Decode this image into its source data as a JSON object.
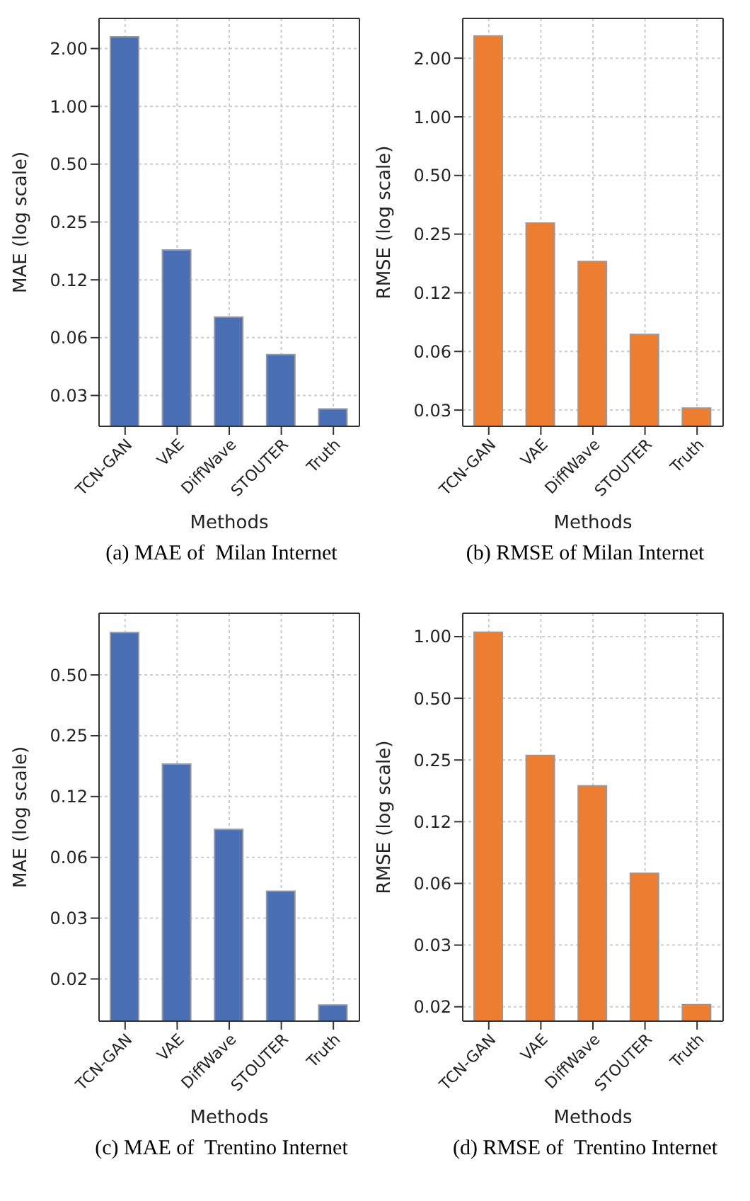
{
  "chart_data": [
    {
      "type": "bar",
      "title": "(a) MAE of  Milan Internet",
      "xlabel": "Methods",
      "ylabel": "MAE (log scale)",
      "categories": [
        "TCN-GAN",
        "VAE",
        "DiffWave",
        "STOUTER",
        "Truth"
      ],
      "values": [
        2.3,
        0.179,
        0.08,
        0.051,
        0.0266
      ],
      "color": "#4a6fb5",
      "log": true,
      "grid": true,
      "ylim": [
        0.0216,
        2.87
      ],
      "yticks": [
        {
          "value": 0.03125,
          "label": "0.03"
        },
        {
          "value": 0.0625,
          "label": "0.06"
        },
        {
          "value": 0.125,
          "label": "0.12"
        },
        {
          "value": 0.25,
          "label": "0.25"
        },
        {
          "value": 0.5,
          "label": "0.50"
        },
        {
          "value": 1,
          "label": "1.00"
        },
        {
          "value": 2,
          "label": "2.00"
        }
      ]
    },
    {
      "type": "bar",
      "title": "(b) RMSE of Milan Internet",
      "xlabel": "Methods",
      "ylabel": "RMSE (log scale)",
      "categories": [
        "TCN-GAN",
        "VAE",
        "DiffWave",
        "STOUTER",
        "Truth"
      ],
      "values": [
        2.6,
        0.285,
        0.181,
        0.0765,
        0.032
      ],
      "color": "#ed7d31",
      "log": true,
      "grid": true,
      "ylim": [
        0.0258,
        3.2
      ],
      "yticks": [
        {
          "value": 0.03125,
          "label": "0.03"
        },
        {
          "value": 0.0625,
          "label": "0.06"
        },
        {
          "value": 0.125,
          "label": "0.12"
        },
        {
          "value": 0.25,
          "label": "0.25"
        },
        {
          "value": 0.5,
          "label": "0.50"
        },
        {
          "value": 1,
          "label": "1.00"
        },
        {
          "value": 2,
          "label": "2.00"
        }
      ]
    },
    {
      "type": "bar",
      "title": "(c) MAE of  Trentino Internet",
      "xlabel": "Methods",
      "ylabel": "MAE (log scale)",
      "categories": [
        "TCN-GAN",
        "VAE",
        "DiffWave",
        "STOUTER",
        "Truth"
      ],
      "values": [
        0.81,
        0.181,
        0.086,
        0.0425,
        0.0116
      ],
      "color": "#4a6fb5",
      "log": true,
      "grid": true,
      "ylim": [
        0.00966,
        1.01
      ],
      "yticks": [
        {
          "value": 0.015625,
          "label": "0.02"
        },
        {
          "value": 0.03125,
          "label": "0.03"
        },
        {
          "value": 0.0625,
          "label": "0.06"
        },
        {
          "value": 0.125,
          "label": "0.12"
        },
        {
          "value": 0.25,
          "label": "0.25"
        },
        {
          "value": 0.5,
          "label": "0.50"
        }
      ]
    },
    {
      "type": "bar",
      "title": "(d) RMSE of  Trentino Internet",
      "xlabel": "Methods",
      "ylabel": "RMSE (log scale)",
      "categories": [
        "TCN-GAN",
        "VAE",
        "DiffWave",
        "STOUTER",
        "Truth"
      ],
      "values": [
        1.05,
        0.263,
        0.187,
        0.07,
        0.016
      ],
      "color": "#ed7d31",
      "log": true,
      "grid": true,
      "ylim": [
        0.0133,
        1.3
      ],
      "yticks": [
        {
          "value": 0.015625,
          "label": "0.02"
        },
        {
          "value": 0.03125,
          "label": "0.03"
        },
        {
          "value": 0.0625,
          "label": "0.06"
        },
        {
          "value": 0.125,
          "label": "0.12"
        },
        {
          "value": 0.25,
          "label": "0.25"
        },
        {
          "value": 0.5,
          "label": "0.50"
        },
        {
          "value": 1,
          "label": "1.00"
        }
      ]
    }
  ]
}
